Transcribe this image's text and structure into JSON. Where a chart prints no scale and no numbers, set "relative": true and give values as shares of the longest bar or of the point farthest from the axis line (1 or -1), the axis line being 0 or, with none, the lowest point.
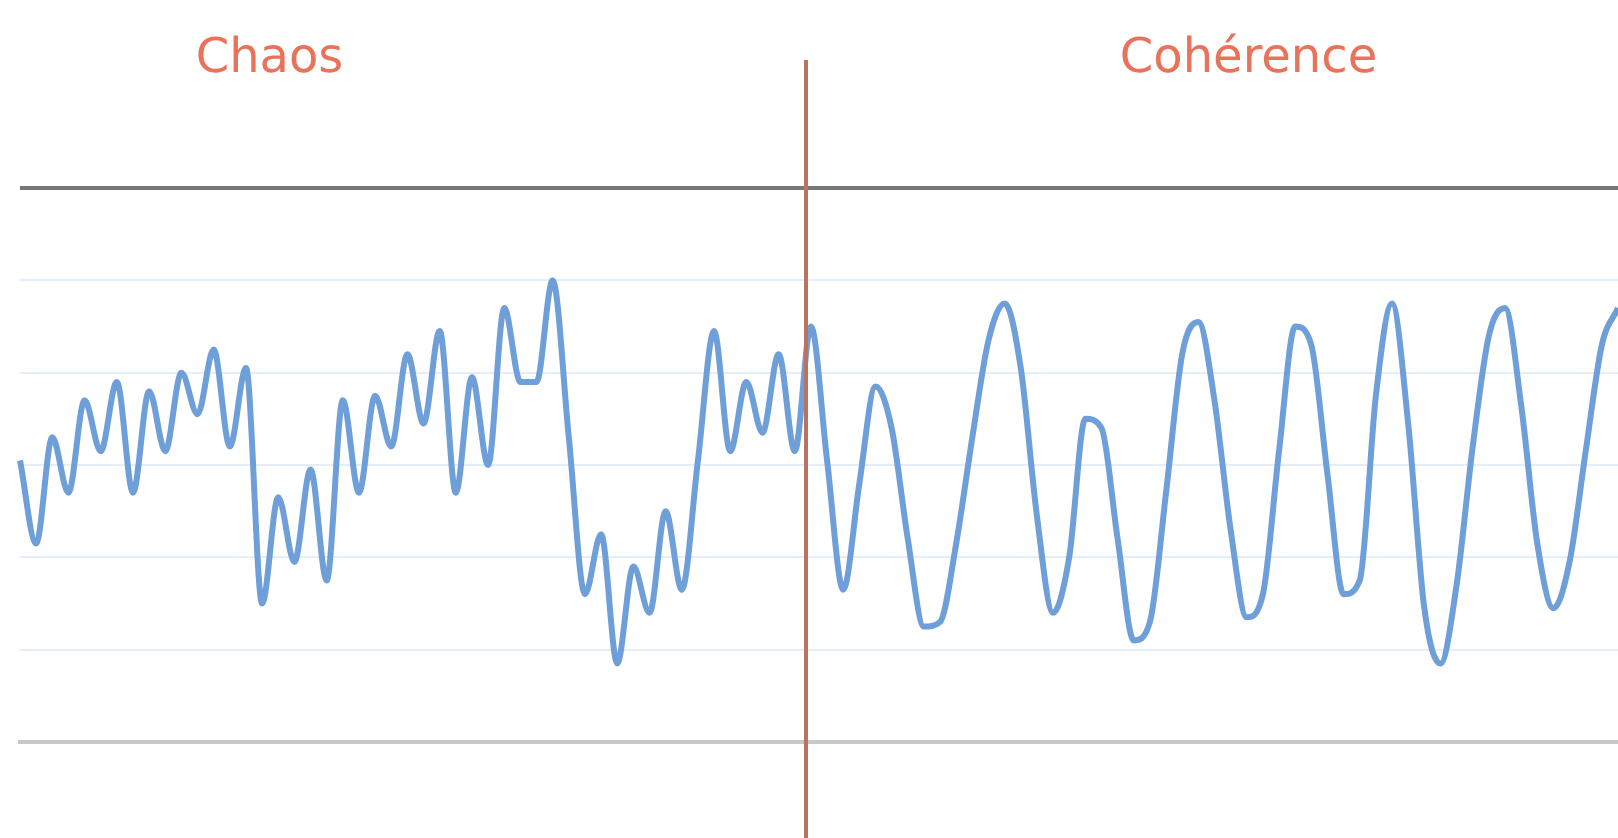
{
  "chart_data": {
    "type": "line",
    "relative": true,
    "grid": "y",
    "marker": "none",
    "legend": false,
    "annotations": [
      "Chaos",
      "Cohérence"
    ],
    "categories": [
      null,
      null,
      null,
      null,
      null,
      null,
      null,
      null,
      null,
      null,
      null,
      null,
      null,
      null,
      null,
      null,
      null,
      null,
      null,
      null,
      null,
      null,
      null,
      null,
      null,
      null,
      null,
      null,
      null,
      null,
      null,
      null,
      null,
      null,
      null,
      null,
      null,
      null,
      null,
      null,
      null,
      null,
      null,
      null,
      null,
      null,
      null,
      null,
      null,
      null,
      null,
      null,
      null,
      null,
      null,
      null,
      null,
      null,
      null,
      null,
      null,
      null,
      null,
      null,
      null,
      null,
      null,
      null,
      null,
      null,
      null,
      null,
      null,
      null,
      null,
      null,
      null,
      null,
      null,
      null,
      null,
      null,
      null,
      null,
      null,
      null,
      null,
      null,
      null,
      null,
      null,
      null,
      null,
      null,
      null,
      null,
      null,
      null,
      null,
      null
    ],
    "series": [
      {
        "color": "#6f9fd8",
        "values": [
          0.61,
          0.43,
          0.66,
          0.54,
          0.74,
          0.63,
          0.78,
          0.54,
          0.76,
          0.63,
          0.8,
          0.71,
          0.85,
          0.64,
          0.81,
          0.3,
          0.53,
          0.39,
          0.59,
          0.35,
          0.74,
          0.54,
          0.75,
          0.64,
          0.84,
          0.69,
          0.89,
          0.54,
          0.79,
          0.6,
          0.94,
          0.78,
          0.78,
          1,
          0.66,
          0.32,
          0.45,
          0.17,
          0.38,
          0.28,
          0.5,
          0.33,
          0.61,
          0.89,
          0.63,
          0.78,
          0.67,
          0.84,
          0.63,
          0.9,
          0.61,
          0.33,
          0.56,
          0.77,
          0.68,
          0.44,
          0.25,
          0.26,
          0.43,
          0.66,
          0.87,
          0.95,
          0.81,
          0.49,
          0.28,
          0.4,
          0.7,
          0.68,
          0.44,
          0.22,
          0.26,
          0.54,
          0.84,
          0.91,
          0.74,
          0.46,
          0.27,
          0.32,
          0.63,
          0.9,
          0.86,
          0.58,
          0.32,
          0.35,
          0.75,
          0.95,
          0.69,
          0.29,
          0.17,
          0.34,
          0.64,
          0.88,
          0.94,
          0.73,
          0.43,
          0.29,
          0.39,
          0.63,
          0.86,
          0.94
        ]
      }
    ]
  }
}
